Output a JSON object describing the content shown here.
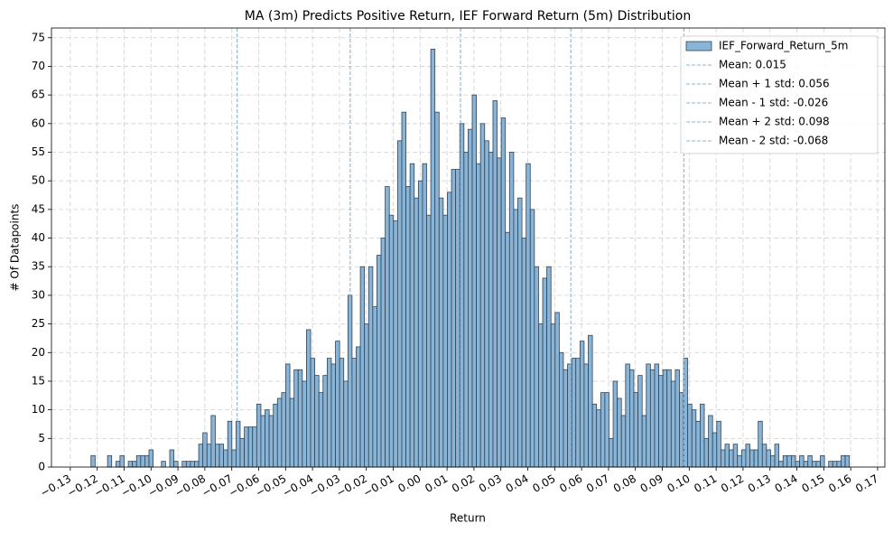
{
  "chart_data": {
    "type": "histogram",
    "title": "MA (3m) Predicts Positive Return, IEF Forward Return (5m) Distribution",
    "xlabel": "Return",
    "ylabel": "# Of Datapoints",
    "bins": [
      -0.1254,
      -0.12386,
      -0.12232,
      -0.12078,
      -0.11924,
      -0.1177,
      -0.11616,
      -0.11462,
      -0.11308,
      -0.11154,
      -0.11,
      -0.10846,
      -0.10692,
      -0.10538,
      -0.10384,
      -0.1023,
      -0.10076,
      -0.09922,
      -0.09768,
      -0.09614,
      -0.0946,
      -0.09306,
      -0.09152,
      -0.08998,
      -0.08844,
      -0.0869,
      -0.08536,
      -0.08382,
      -0.08228,
      -0.08074,
      -0.0792,
      -0.07766,
      -0.07612,
      -0.07458,
      -0.07304,
      -0.0715,
      -0.06996,
      -0.06842,
      -0.06688,
      -0.06534,
      -0.0638,
      -0.06226,
      -0.06072,
      -0.05918,
      -0.05764,
      -0.0561,
      -0.05456,
      -0.05302,
      -0.05148,
      -0.04994,
      -0.0484,
      -0.04686,
      -0.04532,
      -0.04378,
      -0.04224,
      -0.0407,
      -0.03916,
      -0.03762,
      -0.03608,
      -0.03454,
      -0.033,
      -0.03146,
      -0.02992,
      -0.02838,
      -0.02684,
      -0.0253,
      -0.02376,
      -0.02222,
      -0.02068,
      -0.01914,
      -0.0176,
      -0.01606,
      -0.01452,
      -0.01298,
      -0.01144,
      -0.0099,
      -0.00836,
      -0.00682,
      -0.00528,
      -0.00374,
      -0.0022,
      -0.00066,
      0.00088,
      0.00242,
      0.00396,
      0.0055,
      0.00704,
      0.00858,
      0.01012,
      0.01166,
      0.0132,
      0.01474,
      0.01628,
      0.01782,
      0.01936,
      0.0209,
      0.02244,
      0.02398,
      0.02552,
      0.02706,
      0.0286,
      0.03014,
      0.03168,
      0.03322,
      0.03476,
      0.0363,
      0.03784,
      0.03938,
      0.04092,
      0.04246,
      0.044,
      0.04554,
      0.04708,
      0.04862,
      0.05016,
      0.0517,
      0.05324,
      0.05478,
      0.05632,
      0.05786,
      0.0594,
      0.06094,
      0.06248,
      0.06402,
      0.06556,
      0.0671,
      0.06864,
      0.07018,
      0.07172,
      0.07326,
      0.0748,
      0.07634,
      0.07788,
      0.07942,
      0.08096,
      0.0825,
      0.08404,
      0.08558,
      0.08712,
      0.08866,
      0.0902,
      0.09174,
      0.09328,
      0.09482,
      0.09636,
      0.0979,
      0.09944,
      0.10098,
      0.10252,
      0.10406,
      0.1056,
      0.10714,
      0.10868,
      0.11022,
      0.11176,
      0.1133,
      0.11484,
      0.11638,
      0.11792,
      0.11946,
      0.121,
      0.12254,
      0.12408,
      0.12562,
      0.12716,
      0.1287,
      0.13024,
      0.13178,
      0.13332,
      0.13486,
      0.1364,
      0.13794,
      0.13948,
      0.14102,
      0.14256,
      0.1441,
      0.14564,
      0.14718,
      0.14872,
      0.15026,
      0.1518,
      0.15334,
      0.15488,
      0.15642,
      0.15796,
      0.1595
    ],
    "series": [
      {
        "name": "IEF_Forward_Return_5m",
        "color": "#8ab4d6",
        "edgecolor": "#2f4457",
        "values": [
          0,
          0,
          2,
          0,
          0,
          0,
          2,
          0,
          1,
          2,
          0,
          1,
          1,
          2,
          2,
          2,
          3,
          0,
          0,
          1,
          0,
          3,
          1,
          0,
          1,
          1,
          1,
          1,
          4,
          6,
          4,
          9,
          4,
          4,
          3,
          8,
          3,
          8,
          5,
          7,
          7,
          7,
          11,
          9,
          10,
          9,
          11,
          12,
          13,
          18,
          12,
          17,
          17,
          15,
          24,
          19,
          16,
          13,
          16,
          19,
          18,
          22,
          19,
          15,
          30,
          19,
          21,
          35,
          25,
          35,
          28,
          37,
          40,
          49,
          44,
          43,
          57,
          62,
          49,
          53,
          47,
          50,
          53,
          44,
          73,
          62,
          47,
          44,
          48,
          52,
          52,
          60,
          55,
          59,
          65,
          53,
          60,
          57,
          55,
          64,
          54,
          61,
          41,
          55,
          45,
          47,
          40,
          53,
          45,
          35,
          25,
          33,
          35,
          25,
          27,
          20,
          17,
          18,
          19,
          19,
          22,
          18,
          23,
          11,
          10,
          13,
          13,
          5,
          15,
          12,
          9,
          18,
          17,
          13,
          16,
          9,
          18,
          17,
          18,
          16,
          17,
          17,
          15,
          17,
          13,
          19,
          11,
          10,
          8,
          11,
          5,
          9,
          6,
          8,
          3,
          4,
          3,
          4,
          2,
          3,
          4,
          3,
          3,
          8,
          4,
          3,
          2,
          4,
          1,
          2,
          2,
          2,
          1,
          2,
          1,
          2,
          1,
          1,
          2,
          0,
          1,
          1,
          1,
          2,
          2
        ]
      }
    ],
    "vlines": [
      {
        "value": 0.015,
        "label": "Mean: 0.015"
      },
      {
        "value": 0.056,
        "label": "Mean + 1 std: 0.056"
      },
      {
        "value": -0.026,
        "label": "Mean - 1 std: -0.026"
      },
      {
        "value": 0.098,
        "label": "Mean + 2 std: 0.098"
      },
      {
        "value": -0.068,
        "label": "Mean - 2 std: -0.068"
      }
    ],
    "vline_color": "#8ab4d6",
    "xlim": [
      -0.137,
      0.1727
    ],
    "ylim": [
      0,
      76.7
    ],
    "xticks": [
      {
        "value": -0.13,
        "label": "−0.13"
      },
      {
        "value": -0.12,
        "label": "−0.12"
      },
      {
        "value": -0.11,
        "label": "−0.11"
      },
      {
        "value": -0.1,
        "label": "−0.10"
      },
      {
        "value": -0.09,
        "label": "−0.09"
      },
      {
        "value": -0.08,
        "label": "−0.08"
      },
      {
        "value": -0.07,
        "label": "−0.07"
      },
      {
        "value": -0.06,
        "label": "−0.06"
      },
      {
        "value": -0.05,
        "label": "−0.05"
      },
      {
        "value": -0.04,
        "label": "−0.04"
      },
      {
        "value": -0.03,
        "label": "−0.03"
      },
      {
        "value": -0.02,
        "label": "−0.02"
      },
      {
        "value": -0.01,
        "label": "−0.01"
      },
      {
        "value": 0,
        "label": "0.00"
      },
      {
        "value": 0.01,
        "label": "0.01"
      },
      {
        "value": 0.02,
        "label": "0.02"
      },
      {
        "value": 0.03,
        "label": "0.03"
      },
      {
        "value": 0.04,
        "label": "0.04"
      },
      {
        "value": 0.05,
        "label": "0.05"
      },
      {
        "value": 0.06,
        "label": "0.06"
      },
      {
        "value": 0.07,
        "label": "0.07"
      },
      {
        "value": 0.08,
        "label": "0.08"
      },
      {
        "value": 0.09,
        "label": "0.09"
      },
      {
        "value": 0.1,
        "label": "0.10"
      },
      {
        "value": 0.11,
        "label": "0.11"
      },
      {
        "value": 0.12,
        "label": "0.12"
      },
      {
        "value": 0.13,
        "label": "0.13"
      },
      {
        "value": 0.14,
        "label": "0.14"
      },
      {
        "value": 0.15,
        "label": "0.15"
      },
      {
        "value": 0.16,
        "label": "0.16"
      },
      {
        "value": 0.17,
        "label": "0.17"
      }
    ],
    "yticks": [
      0,
      5,
      10,
      15,
      20,
      25,
      30,
      35,
      40,
      45,
      50,
      55,
      60,
      65,
      70,
      75
    ],
    "grid": true,
    "legend": "upper right"
  }
}
